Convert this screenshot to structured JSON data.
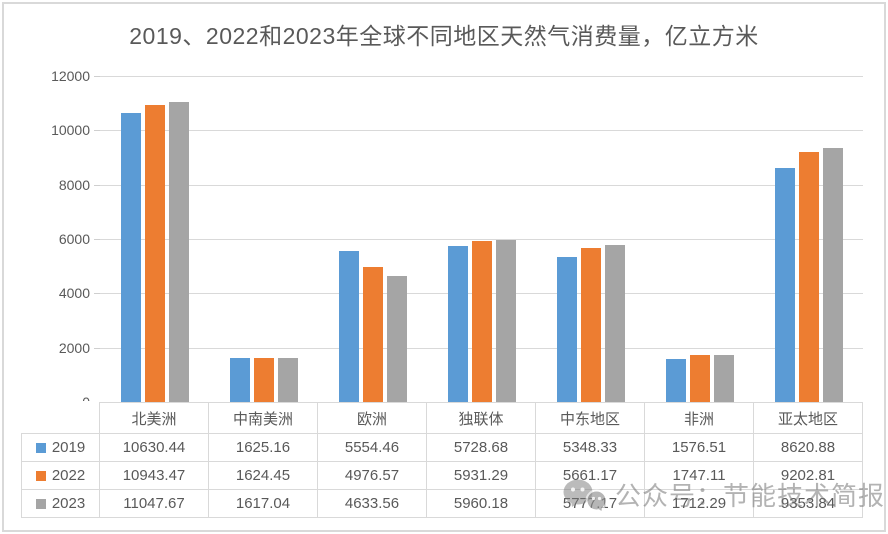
{
  "chart_data": {
    "type": "bar",
    "title": "2019、2022和2023年全球不同地区天然气消费量，亿立方米",
    "categories": [
      "北美洲",
      "中南美洲",
      "欧洲",
      "独联体",
      "中东地区",
      "非洲",
      "亚太地区"
    ],
    "series": [
      {
        "name": "2019",
        "color": "#5B9BD5",
        "values": [
          10630.44,
          1625.16,
          5554.46,
          5728.68,
          5348.33,
          1576.51,
          8620.88
        ]
      },
      {
        "name": "2022",
        "color": "#ED7D31",
        "values": [
          10943.47,
          1624.45,
          4976.57,
          5931.29,
          5661.17,
          1747.11,
          9202.81
        ]
      },
      {
        "name": "2023",
        "color": "#A5A5A5",
        "values": [
          11047.67,
          1617.04,
          4633.56,
          5960.18,
          5777.17,
          1712.29,
          9353.84
        ]
      }
    ],
    "ylim": [
      0,
      12000
    ],
    "yticks": [
      0,
      2000,
      4000,
      6000,
      8000,
      10000,
      12000
    ],
    "grid": true,
    "legend_position": "data-table-left",
    "data_table": true,
    "value_decimals": 2
  },
  "watermark": {
    "icon": "wechat-icon",
    "text": "公众号：节能技术简报"
  },
  "colors": {
    "text": "#595959",
    "gridline": "#d9d9d9",
    "table_border": "#d9d9d9",
    "frame_border": "#d9d9d9",
    "series_2019": "#5B9BD5",
    "series_2022": "#ED7D31",
    "series_2023": "#A5A5A5"
  }
}
